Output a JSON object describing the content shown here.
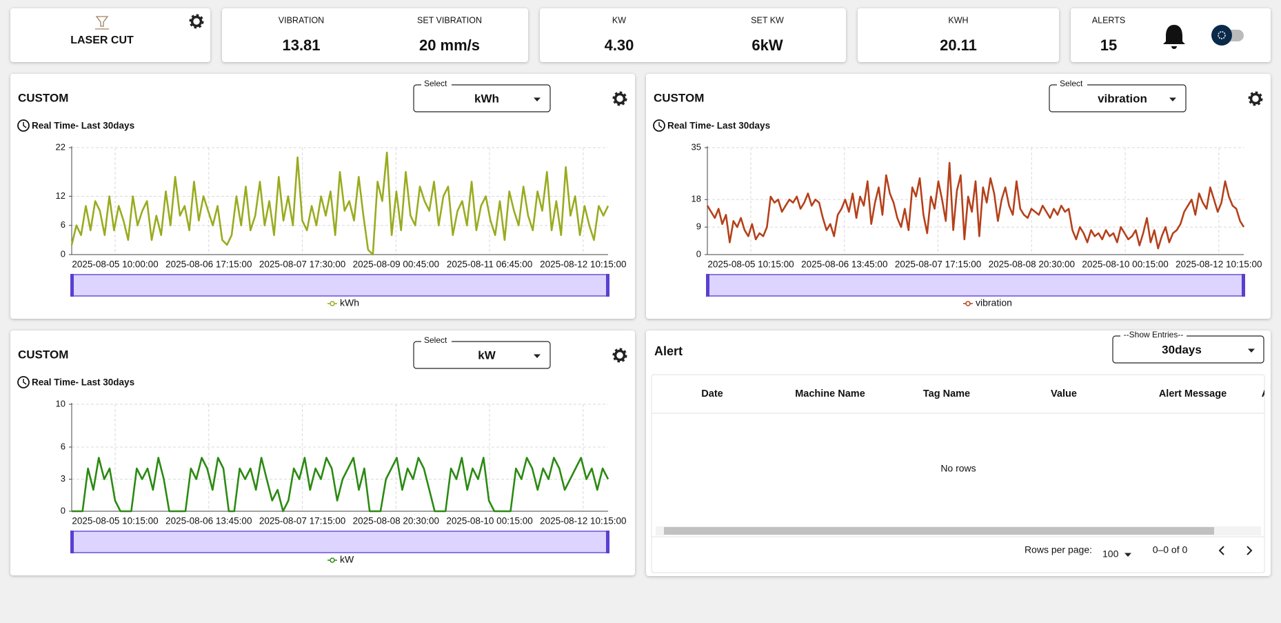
{
  "header": {
    "machine": "LASER CUT",
    "cards": [
      {
        "label": "VIBRATION",
        "value": "13.81"
      },
      {
        "label": "SET VIBRATION",
        "value": "20 mm/s"
      },
      {
        "label": "KW",
        "value": "4.30"
      },
      {
        "label": "SET KW",
        "value": "6kW"
      },
      {
        "label": "KWH",
        "value": "20.11"
      },
      {
        "label": "ALERTS",
        "value": "15"
      }
    ]
  },
  "chart_data": [
    {
      "type": "line",
      "title": "CUSTOM",
      "subtitle": "Real Time- Last 30days",
      "select_label": "Select",
      "select_value": "kWh",
      "ylim": [
        0,
        22
      ],
      "yticks": [
        0,
        6,
        12,
        22
      ],
      "grid": true,
      "xticks": [
        "2025-08-05 10:00:00",
        "2025-08-06 17:15:00",
        "2025-08-07 17:30:00",
        "2025-08-09 00:45:00",
        "2025-08-11 06:45:00",
        "2025-08-12 10:15:00"
      ],
      "series": [
        {
          "name": "kWh",
          "color": "#9aab1f",
          "values": [
            2,
            6,
            4,
            10,
            5,
            11,
            9,
            4,
            12,
            5,
            10,
            7,
            3,
            12,
            6,
            9,
            11,
            3,
            8,
            4,
            13,
            6,
            16,
            8,
            10,
            5,
            15,
            7,
            12,
            9,
            6,
            10,
            3,
            2,
            4,
            12,
            6,
            14,
            5,
            8,
            15,
            6,
            11,
            4,
            16,
            7,
            12,
            6,
            20,
            7,
            5,
            10,
            6,
            12,
            8,
            13,
            4,
            17,
            9,
            11,
            7,
            16,
            8,
            1,
            0,
            15,
            11,
            21,
            4,
            13,
            5,
            17,
            8,
            6,
            14,
            11,
            9,
            15,
            6,
            12,
            14,
            4,
            9,
            11,
            6,
            15,
            5,
            10,
            12,
            7,
            4,
            11,
            3,
            13,
            9,
            6,
            14,
            8,
            5,
            13,
            9,
            17,
            5,
            11,
            4,
            18,
            8,
            12,
            4,
            10,
            6,
            3,
            10,
            8,
            10
          ]
        }
      ]
    },
    {
      "type": "line",
      "title": "CUSTOM",
      "subtitle": "Real Time- Last 30days",
      "select_label": "Select",
      "select_value": "vibration",
      "ylim": [
        0,
        35
      ],
      "yticks": [
        0,
        9,
        18,
        35
      ],
      "grid": true,
      "xticks": [
        "2025-08-05 10:15:00",
        "2025-08-06 13:45:00",
        "2025-08-07 17:15:00",
        "2025-08-08 20:30:00",
        "2025-08-10 00:15:00",
        "2025-08-12 10:15:00"
      ],
      "series": [
        {
          "name": "vibration",
          "color": "#b5401a",
          "values": [
            16,
            14,
            12,
            15,
            10,
            13,
            4,
            11,
            9,
            12,
            8,
            6,
            10,
            5,
            7,
            6,
            9,
            19,
            17,
            18,
            14,
            16,
            18,
            17,
            19,
            15,
            17,
            20,
            16,
            18,
            17,
            12,
            8,
            10,
            6,
            13,
            15,
            18,
            14,
            20,
            12,
            19,
            16,
            24,
            10,
            17,
            22,
            13,
            26,
            20,
            17,
            12,
            9,
            15,
            8,
            22,
            19,
            25,
            13,
            7,
            19,
            15,
            24,
            18,
            11,
            30,
            8,
            21,
            26,
            5,
            19,
            14,
            24,
            6,
            22,
            17,
            25,
            20,
            11,
            18,
            22,
            16,
            13,
            24,
            15,
            13,
            12,
            15,
            14,
            13,
            16,
            14,
            12,
            15,
            13,
            16,
            14,
            15,
            8,
            5,
            9,
            7,
            4,
            8,
            6,
            7,
            5,
            8,
            6,
            7,
            4,
            9,
            7,
            5,
            6,
            8,
            3,
            7,
            12,
            4,
            8,
            2,
            6,
            9,
            4,
            7,
            8,
            10,
            14,
            16,
            18,
            13,
            20,
            17,
            15,
            22,
            18,
            14,
            17,
            24,
            19,
            16,
            15,
            11,
            9
          ]
        }
      ]
    },
    {
      "type": "line",
      "title": "CUSTOM",
      "subtitle": "Real Time- Last 30days",
      "select_label": "Select",
      "select_value": "kW",
      "ylim": [
        0,
        10
      ],
      "yticks": [
        0,
        3,
        6,
        10
      ],
      "grid": true,
      "xticks": [
        "2025-08-05 10:15:00",
        "2025-08-06 13:45:00",
        "2025-08-07 17:15:00",
        "2025-08-08 20:30:00",
        "2025-08-10 00:15:00",
        "2025-08-12 10:15:00"
      ],
      "series": [
        {
          "name": "kW",
          "color": "#2a8a12",
          "values": [
            0,
            0,
            0,
            4,
            2,
            5,
            3,
            4,
            1,
            0,
            0,
            0,
            4,
            3,
            4,
            2,
            5,
            3,
            0,
            0,
            0,
            0,
            4,
            3,
            5,
            4,
            2,
            5,
            4,
            0,
            0,
            4,
            3,
            4,
            2,
            5,
            3,
            1,
            2,
            0,
            1,
            4,
            3,
            5,
            2,
            4,
            3,
            5,
            4,
            1,
            3,
            4,
            5,
            2,
            4,
            0,
            0,
            0,
            3,
            4,
            5,
            2,
            4,
            3,
            5,
            4,
            2,
            0,
            0,
            0,
            4,
            3,
            5,
            2,
            4,
            3,
            5,
            1,
            0,
            0,
            0,
            0,
            4,
            3,
            5,
            4,
            2,
            4,
            3,
            5,
            4,
            2,
            3,
            4,
            5,
            3,
            4,
            2,
            4,
            3
          ]
        }
      ]
    }
  ],
  "alert": {
    "title": "Alert",
    "select_label": "--Show Entries--",
    "select_value": "30days",
    "columns": [
      "Date",
      "Machine Name",
      "Tag Name",
      "Value",
      "Alert Message",
      "Ac"
    ],
    "empty": "No rows",
    "rows_per_page_label": "Rows per page:",
    "rows_per_page": "100",
    "range": "0–0 of 0"
  }
}
